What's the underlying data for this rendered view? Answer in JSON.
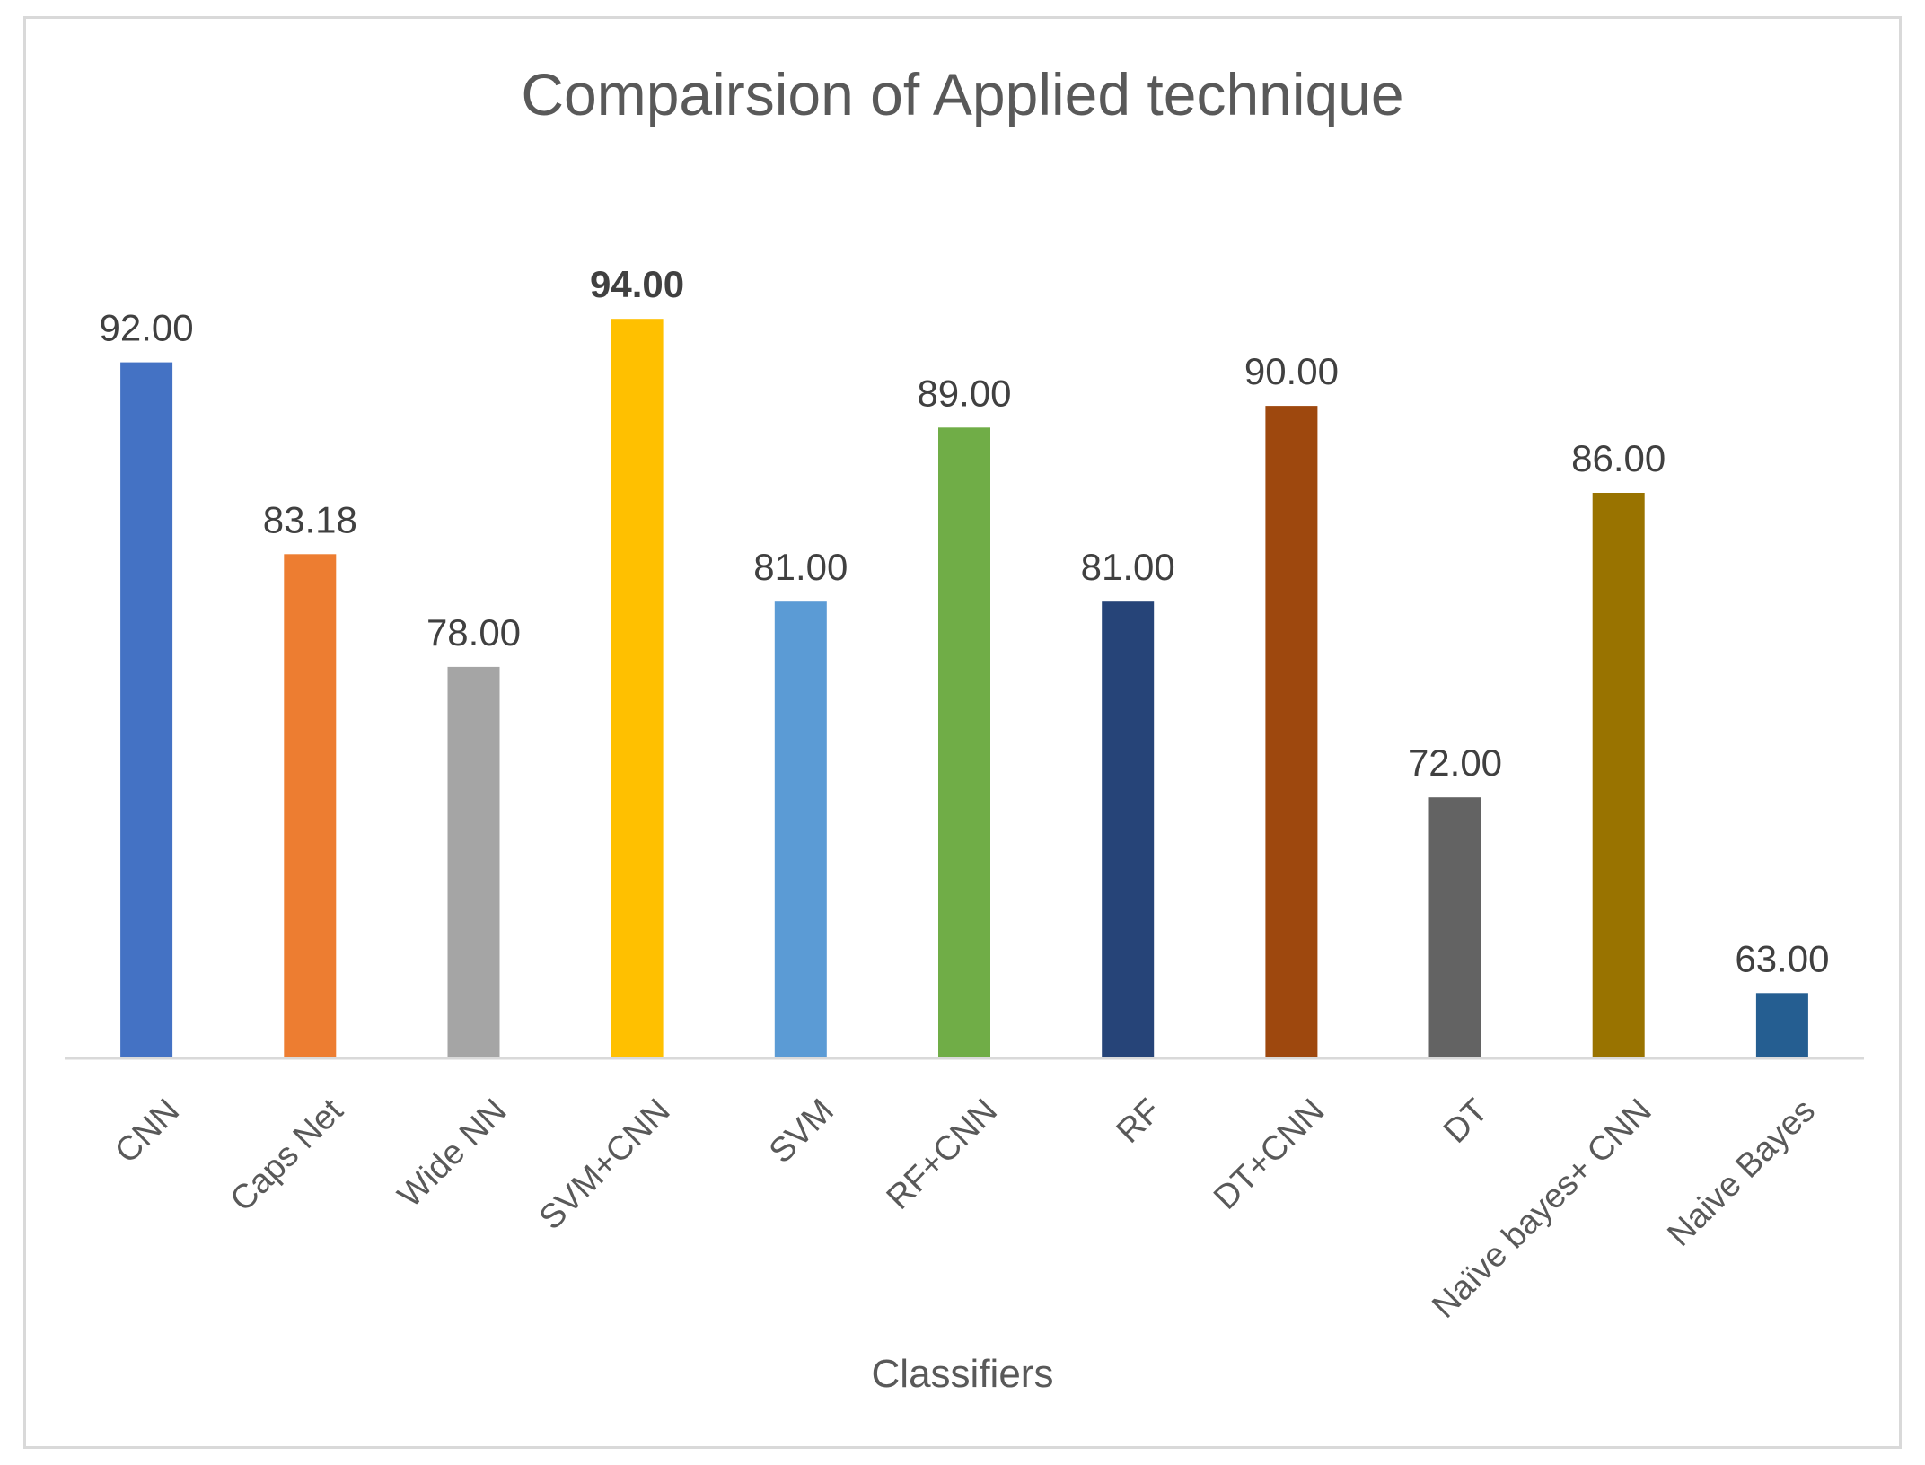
{
  "chart_data": {
    "type": "bar",
    "title": "Compairsion of Applied technique",
    "xlabel": "Classifiers",
    "ylabel": "",
    "ylim": [
      60,
      100
    ],
    "grid": false,
    "legend": "none",
    "categories": [
      "CNN",
      "Caps Net",
      "Wide NN",
      "SVM+CNN",
      "SVM",
      "RF+CNN",
      "RF",
      "DT+CNN",
      "DT",
      "Naïve bayes+ CNN",
      "Naive Bayes"
    ],
    "values": [
      92.0,
      83.18,
      78.0,
      94.0,
      81.0,
      89.0,
      81.0,
      90.0,
      72.0,
      86.0,
      63.0
    ],
    "value_labels": [
      "92.00",
      "83.18",
      "78.00",
      "94.00",
      "81.00",
      "89.00",
      "81.00",
      "90.00",
      "72.00",
      "86.00",
      "63.00"
    ],
    "bold_labels": [
      false,
      false,
      false,
      true,
      false,
      false,
      false,
      false,
      false,
      false,
      false
    ],
    "colors": [
      "#4472c4",
      "#ed7d31",
      "#a5a5a5",
      "#ffc000",
      "#5b9bd5",
      "#70ad47",
      "#264478",
      "#9e480e",
      "#636363",
      "#997300",
      "#255e91"
    ]
  }
}
